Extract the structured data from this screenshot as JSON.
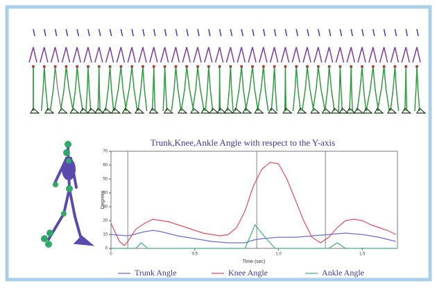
{
  "chart_data": {
    "type": "line",
    "title": "Trunk,Knee,Ankle Angle with respect to the Y-axis",
    "x_label": "Time (sec)",
    "y_label": "Degrees",
    "xlim": [
      0,
      1.71
    ],
    "ylim": [
      0,
      70
    ],
    "xticks": [
      0,
      0.5,
      {
        "value": 1,
        "label": "1.0"
      },
      1.5
    ],
    "yticks": [
      0,
      10,
      20,
      30,
      40,
      50,
      60,
      70
    ],
    "event_lines": [
      0.1,
      0.87,
      1.28
    ],
    "series": [
      {
        "name": "Trunk Angle",
        "color": "#6a6ad8",
        "x": [
          0,
          0.1,
          0.2,
          0.25,
          0.3,
          0.4,
          0.5,
          0.6,
          0.7,
          0.8,
          0.85,
          0.9,
          1.0,
          1.1,
          1.2,
          1.3,
          1.4,
          1.5,
          1.6,
          1.7
        ],
        "values": [
          10,
          9,
          12,
          13,
          12,
          9,
          7,
          5,
          4,
          4,
          6,
          7,
          8,
          8,
          9,
          10,
          11,
          10,
          8,
          5
        ]
      },
      {
        "name": "Knee Angle",
        "color": "#e84c58",
        "x": [
          0,
          0.05,
          0.08,
          0.1,
          0.15,
          0.2,
          0.25,
          0.3,
          0.35,
          0.4,
          0.45,
          0.5,
          0.55,
          0.6,
          0.65,
          0.7,
          0.75,
          0.8,
          0.85,
          0.9,
          0.95,
          1.0,
          1.05,
          1.1,
          1.15,
          1.2,
          1.25,
          1.3,
          1.35,
          1.4,
          1.45,
          1.5,
          1.55,
          1.6,
          1.65,
          1.7
        ],
        "values": [
          18,
          5,
          2,
          5,
          14,
          18,
          21,
          20,
          19,
          17,
          15,
          13,
          11,
          10,
          9,
          10,
          15,
          27,
          45,
          57,
          62,
          61,
          50,
          35,
          20,
          8,
          4,
          8,
          15,
          20,
          21,
          20,
          17,
          15,
          13,
          10
        ]
      },
      {
        "name": "Ankle Angle",
        "color": "#3fae7e",
        "x": [
          0,
          0.15,
          0.18,
          0.22,
          0.8,
          0.86,
          0.92,
          0.98,
          1.3,
          1.35,
          1.4,
          1.7
        ],
        "values": [
          0,
          0,
          4,
          0,
          0,
          17,
          8,
          0,
          0,
          4,
          0,
          0
        ]
      }
    ]
  }
}
